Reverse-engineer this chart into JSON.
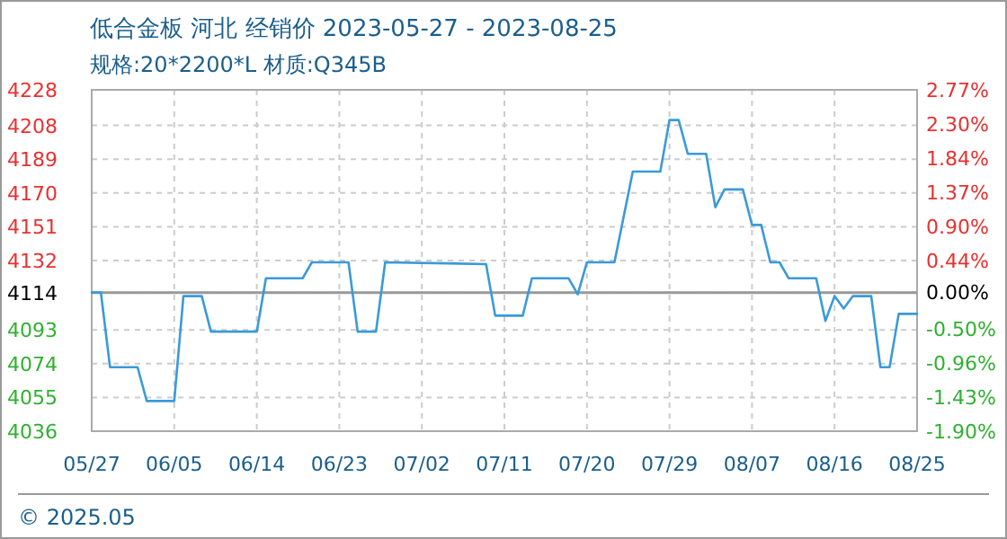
{
  "chart_data": {
    "type": "line",
    "title": "低合金板 河北 经销价 2023-05-27 - 2023-08-25",
    "subtitle": "规格:20*2200*L 材质:Q345B",
    "x": [
      "2023-05-27",
      "2023-05-28",
      "2023-05-29",
      "2023-06-01",
      "2023-06-02",
      "2023-06-05",
      "2023-06-06",
      "2023-06-08",
      "2023-06-09",
      "2023-06-14",
      "2023-06-15",
      "2023-06-19",
      "2023-06-20",
      "2023-06-24",
      "2023-06-25",
      "2023-06-27",
      "2023-06-28",
      "2023-07-09",
      "2023-07-10",
      "2023-07-13",
      "2023-07-14",
      "2023-07-18",
      "2023-07-19",
      "2023-07-20",
      "2023-07-23",
      "2023-07-25",
      "2023-07-28",
      "2023-07-29",
      "2023-07-30",
      "2023-07-31",
      "2023-08-02",
      "2023-08-03",
      "2023-08-04",
      "2023-08-06",
      "2023-08-07",
      "2023-08-08",
      "2023-08-09",
      "2023-08-10",
      "2023-08-11",
      "2023-08-14",
      "2023-08-15",
      "2023-08-16",
      "2023-08-17",
      "2023-08-18",
      "2023-08-20",
      "2023-08-21",
      "2023-08-22",
      "2023-08-23",
      "2023-08-25"
    ],
    "series": [
      {
        "color": "#3a9ad9",
        "values": [
          4114,
          4114,
          4072,
          4072,
          4053,
          4053,
          4112,
          4112,
          4092,
          4092,
          4122,
          4122,
          4131,
          4131,
          4092,
          4092,
          4131,
          4130,
          4101,
          4101,
          4122,
          4122,
          4113,
          4131,
          4131,
          4182,
          4182,
          4211,
          4211,
          4192,
          4192,
          4162,
          4172,
          4172,
          4152,
          4152,
          4131,
          4131,
          4122,
          4122,
          4098,
          4112,
          4105,
          4112,
          4112,
          4072,
          4072,
          4102,
          4102
        ]
      }
    ],
    "xlim": [
      "2023-05-27",
      "2023-08-25"
    ],
    "xticks": [
      {
        "value": "2023-05-27",
        "label": "05/27"
      },
      {
        "value": "2023-06-05",
        "label": "06/05"
      },
      {
        "value": "2023-06-14",
        "label": "06/14"
      },
      {
        "value": "2023-06-23",
        "label": "06/23"
      },
      {
        "value": "2023-07-02",
        "label": "07/02"
      },
      {
        "value": "2023-07-11",
        "label": "07/11"
      },
      {
        "value": "2023-07-20",
        "label": "07/20"
      },
      {
        "value": "2023-07-29",
        "label": "07/29"
      },
      {
        "value": "2023-08-07",
        "label": "08/07"
      },
      {
        "value": "2023-08-16",
        "label": "08/16"
      },
      {
        "value": "2023-08-25",
        "label": "08/25"
      }
    ],
    "ylim": [
      4036,
      4228
    ],
    "yticks": [
      4036,
      4055,
      4074,
      4093,
      4114,
      4132,
      4151,
      4170,
      4189,
      4208,
      4228
    ],
    "y2lim": [
      -1.9,
      2.77
    ],
    "y2ticks": [
      {
        "value": -1.9,
        "label": "-1.90%"
      },
      {
        "value": -1.43,
        "label": "-1.43%"
      },
      {
        "value": -0.96,
        "label": "-0.96%"
      },
      {
        "value": -0.5,
        "label": "-0.50%"
      },
      {
        "value": 0,
        "label": "0.00%"
      },
      {
        "value": 0.44,
        "label": "0.44%"
      },
      {
        "value": 0.9,
        "label": "0.90%"
      },
      {
        "value": 1.37,
        "label": "1.37%"
      },
      {
        "value": 1.84,
        "label": "1.84%"
      },
      {
        "value": 2.3,
        "label": "2.30%"
      },
      {
        "value": 2.77,
        "label": "2.77%"
      }
    ],
    "ref_lines": [
      {
        "axis": "y",
        "value": 4114,
        "color": "#999999"
      }
    ],
    "grid": true,
    "annotations": [
      "© 2025.05"
    ]
  }
}
